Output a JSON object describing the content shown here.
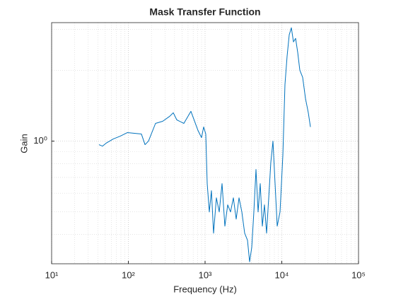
{
  "chart_data": {
    "type": "line",
    "title": "Mask Transfer Function",
    "xlabel": "Frequency (Hz)",
    "ylabel": "Gain",
    "xscale": "log",
    "yscale": "log",
    "grid": true,
    "minor_grid": true,
    "color": "#0072bd",
    "xlim": [
      10,
      100000
    ],
    "xticks": [
      {
        "value": 10,
        "label": "10¹"
      },
      {
        "value": 100,
        "label": "10²"
      },
      {
        "value": 1000,
        "label": "10³"
      },
      {
        "value": 10000,
        "label": "10⁴"
      },
      {
        "value": 100000,
        "label": "10⁵"
      }
    ],
    "ylim": [
      0.3,
      3.2
    ],
    "yticks": [
      {
        "value": 1,
        "label": "10⁰"
      }
    ],
    "x": [
      41.4,
      46.1,
      51.3,
      57,
      63.4,
      78.3,
      96.9,
      119.8,
      148,
      165,
      183,
      226,
      280,
      346,
      385,
      428,
      529,
      654,
      809,
      899,
      958,
      1021,
      1066,
      1136,
      1210,
      1290,
      1404,
      1529,
      1664,
      1812,
      1972,
      2147,
      2338,
      2544,
      2770,
      3015,
      3282,
      3573,
      3807,
      4058,
      4324,
      4609,
      4911,
      5235,
      5578,
      5946,
      6336,
      6753,
      7196,
      7670,
      8173,
      8711,
      9485,
      10323,
      11000,
      11730,
      12500,
      13320,
      14200,
      15130,
      16130,
      17180,
      18700,
      20370,
      22160,
      23620
    ],
    "values": [
      0.966,
      0.952,
      0.98,
      1.0,
      1.021,
      1.05,
      1.087,
      1.08,
      1.072,
      0.966,
      1.0,
      1.19,
      1.215,
      1.276,
      1.321,
      1.232,
      1.19,
      1.34,
      1.11,
      1.035,
      1.149,
      1.072,
      0.659,
      0.499,
      0.615,
      0.405,
      0.573,
      0.499,
      0.659,
      0.434,
      0.535,
      0.499,
      0.573,
      0.465,
      0.573,
      0.499,
      0.405,
      0.378,
      0.306,
      0.352,
      0.499,
      0.757,
      0.499,
      0.659,
      0.434,
      0.535,
      0.405,
      0.573,
      0.812,
      1.0,
      0.659,
      0.434,
      0.499,
      0.87,
      1.745,
      2.305,
      2.84,
      3.043,
      2.648,
      2.742,
      2.386,
      2.005,
      1.871,
      1.518,
      1.321,
      1.149
    ]
  }
}
